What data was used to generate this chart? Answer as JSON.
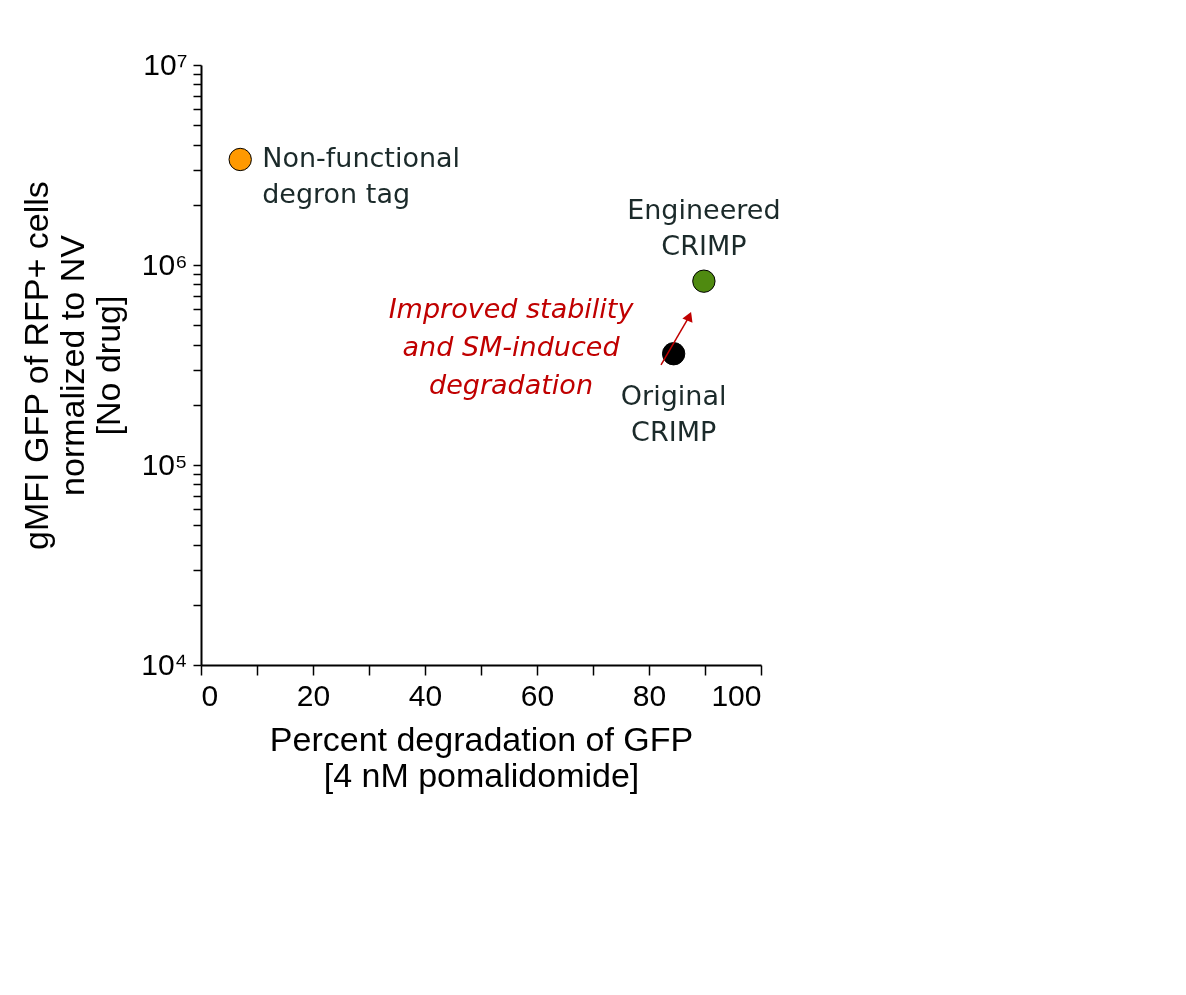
{
  "chart_data": {
    "type": "scatter",
    "xlabel": "Percent degradation of GFP\n[4 nM pomalidomide]",
    "ylabel": "gMFI GFP of RFP+ cells\nnormalized to NV\n[No drug]",
    "series": [
      {
        "x": [
          7
        ],
        "values": [
          3370000
        ],
        "color": "#ff9900"
      },
      {
        "x": [
          84.4
        ],
        "values": [
          360000
        ],
        "color": "#000000"
      },
      {
        "x": [
          89.8
        ],
        "values": [
          830000
        ],
        "color": "#4f8a10"
      }
    ],
    "annotations": [
      {
        "text": "Non-functional\ndegron tag",
        "x": 7,
        "y": 3370000
      },
      {
        "text": "Original\nCRIMP",
        "x": 84.4,
        "y": 360000
      },
      {
        "text": "Engineered\nCRIMP",
        "x": 89.8,
        "y": 830000
      },
      "Improved stability\nand SM-induced\ndegradation"
    ],
    "log": "y",
    "xlim": [
      0,
      100
    ],
    "xticks": [
      0,
      {
        "value": 10,
        "label": null
      },
      20,
      {
        "value": 30,
        "label": null
      },
      40,
      {
        "value": 50,
        "label": null
      },
      60,
      {
        "value": 70,
        "label": null
      },
      80,
      {
        "value": 90,
        "label": null
      },
      100
    ],
    "ylim": [
      10000,
      10000000
    ],
    "yticks": [
      {
        "value": 10000,
        "label": "10⁴"
      },
      {
        "value": 20000,
        "label": null
      },
      {
        "value": 30000,
        "label": null
      },
      {
        "value": 40000,
        "label": null
      },
      {
        "value": 50000,
        "label": null
      },
      {
        "value": 60000,
        "label": null
      },
      {
        "value": 70000,
        "label": null
      },
      {
        "value": 80000,
        "label": null
      },
      {
        "value": 90000,
        "label": null
      },
      {
        "value": 100000,
        "label": "10⁵"
      },
      {
        "value": 200000,
        "label": null
      },
      {
        "value": 300000,
        "label": null
      },
      {
        "value": 400000,
        "label": null
      },
      {
        "value": 500000,
        "label": null
      },
      {
        "value": 600000,
        "label": null
      },
      {
        "value": 700000,
        "label": null
      },
      {
        "value": 800000,
        "label": null
      },
      {
        "value": 900000,
        "label": null
      },
      {
        "value": 1000000,
        "label": "10⁶"
      },
      {
        "value": 2000000,
        "label": null
      },
      {
        "value": 3000000,
        "label": null
      },
      {
        "value": 4000000,
        "label": null
      },
      {
        "value": 5000000,
        "label": null
      },
      {
        "value": 6000000,
        "label": null
      },
      {
        "value": 7000000,
        "label": null
      },
      {
        "value": 8000000,
        "label": null
      },
      {
        "value": 9000000,
        "label": null
      },
      {
        "value": 10000000,
        "label": "10⁷"
      }
    ],
    "grid": false,
    "legend": false,
    "marker": "circle"
  }
}
